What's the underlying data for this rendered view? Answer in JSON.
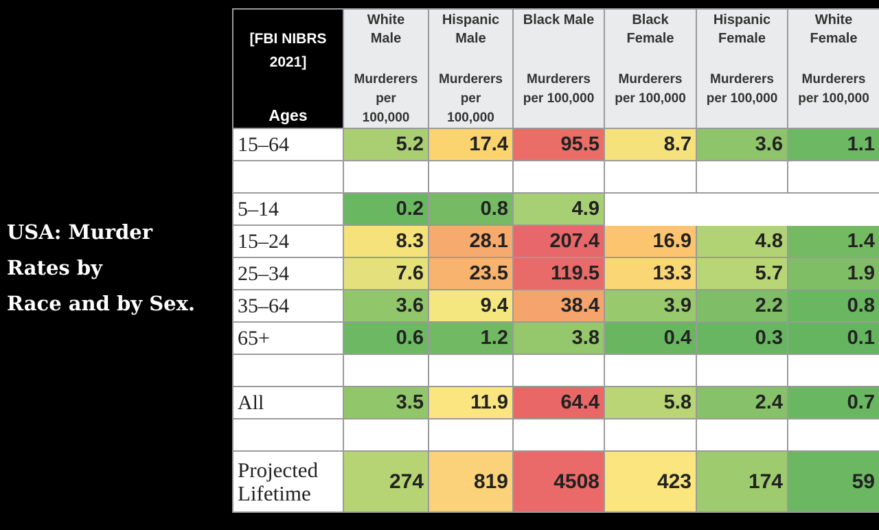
{
  "side_title": {
    "lines": [
      "USA: Murder",
      "Rates by",
      "Race and by Sex."
    ]
  },
  "chart_data": {
    "type": "table",
    "header": {
      "source_line1": "[FBI NIBRS",
      "source_line2": "2021]",
      "row_header": "Ages"
    },
    "columns": [
      {
        "group_line1": "White",
        "group_line2": "Male",
        "unit_lines": [
          "Murderers",
          "per",
          "100,000"
        ]
      },
      {
        "group_line1": "Hispanic",
        "group_line2": "Male",
        "unit_lines": [
          "Murderers",
          "per",
          "100,000"
        ]
      },
      {
        "group_line1": "Black Male",
        "group_line2": "",
        "unit_lines": [
          "Murderers",
          "per 100,000"
        ]
      },
      {
        "group_line1": "Black",
        "group_line2": "Female",
        "unit_lines": [
          "Murderers",
          "per 100,000"
        ]
      },
      {
        "group_line1": "Hispanic",
        "group_line2": "Female",
        "unit_lines": [
          "Murderers",
          "per 100,000"
        ]
      },
      {
        "group_line1": "White",
        "group_line2": "Female",
        "unit_lines": [
          "Murderers",
          "per 100,000"
        ]
      }
    ],
    "rows": [
      {
        "label": "15–64",
        "values": [
          "5.2",
          "17.4",
          "95.5",
          "8.7",
          "3.6",
          "1.1"
        ],
        "colors": [
          "#a9cf72",
          "#fbd36f",
          "#ea6e67",
          "#f6e27b",
          "#8ec46a",
          "#6db863"
        ]
      },
      {
        "spacer": true
      },
      {
        "label": "5–14",
        "values": [
          "0.2",
          "0.8",
          "4.9",
          "",
          "",
          ""
        ],
        "colors": [
          "#6ab761",
          "#76bb64",
          "#a7cf73",
          null,
          null,
          null
        ]
      },
      {
        "label": "15–24",
        "values": [
          "8.3",
          "28.1",
          "207.4",
          "16.9",
          "4.8",
          "1.4"
        ],
        "colors": [
          "#f6e27a",
          "#f7aa6d",
          "#e8676a",
          "#fcc46f",
          "#b1d374",
          "#74ba63"
        ]
      },
      {
        "label": "25–34",
        "values": [
          "7.6",
          "23.5",
          "119.5",
          "13.3",
          "5.7",
          "1.9"
        ],
        "colors": [
          "#e4e17c",
          "#f8b36f",
          "#e86a69",
          "#fbd675",
          "#b9d676",
          "#80be66"
        ]
      },
      {
        "label": "35–64",
        "values": [
          "3.6",
          "9.4",
          "38.4",
          "3.9",
          "2.2",
          "0.8"
        ],
        "colors": [
          "#92c66b",
          "#f5e77f",
          "#f6a46e",
          "#99c96d",
          "#7fbe67",
          "#6ab761"
        ]
      },
      {
        "label": "65+",
        "values": [
          "0.6",
          "1.2",
          "3.8",
          "0.4",
          "0.3",
          "0.1"
        ],
        "colors": [
          "#6db863",
          "#72b963",
          "#95c76c",
          "#69b661",
          "#68b661",
          "#65b560"
        ]
      },
      {
        "spacer": true
      },
      {
        "label": "All",
        "values": [
          "3.5",
          "11.9",
          "64.4",
          "5.8",
          "2.4",
          "0.7"
        ],
        "colors": [
          "#92c66b",
          "#fbe581",
          "#ea6767",
          "#b9d575",
          "#87c169",
          "#6ab761"
        ]
      },
      {
        "spacer": true
      },
      {
        "label_lines": [
          "Projected",
          "Lifetime"
        ],
        "values": [
          "274",
          "819",
          "4508",
          "423",
          "174",
          "59"
        ],
        "colors": [
          "#b7d474",
          "#fbd27a",
          "#ea6a69",
          "#fbe57e",
          "#9dcb6d",
          "#6cb762"
        ]
      }
    ]
  }
}
